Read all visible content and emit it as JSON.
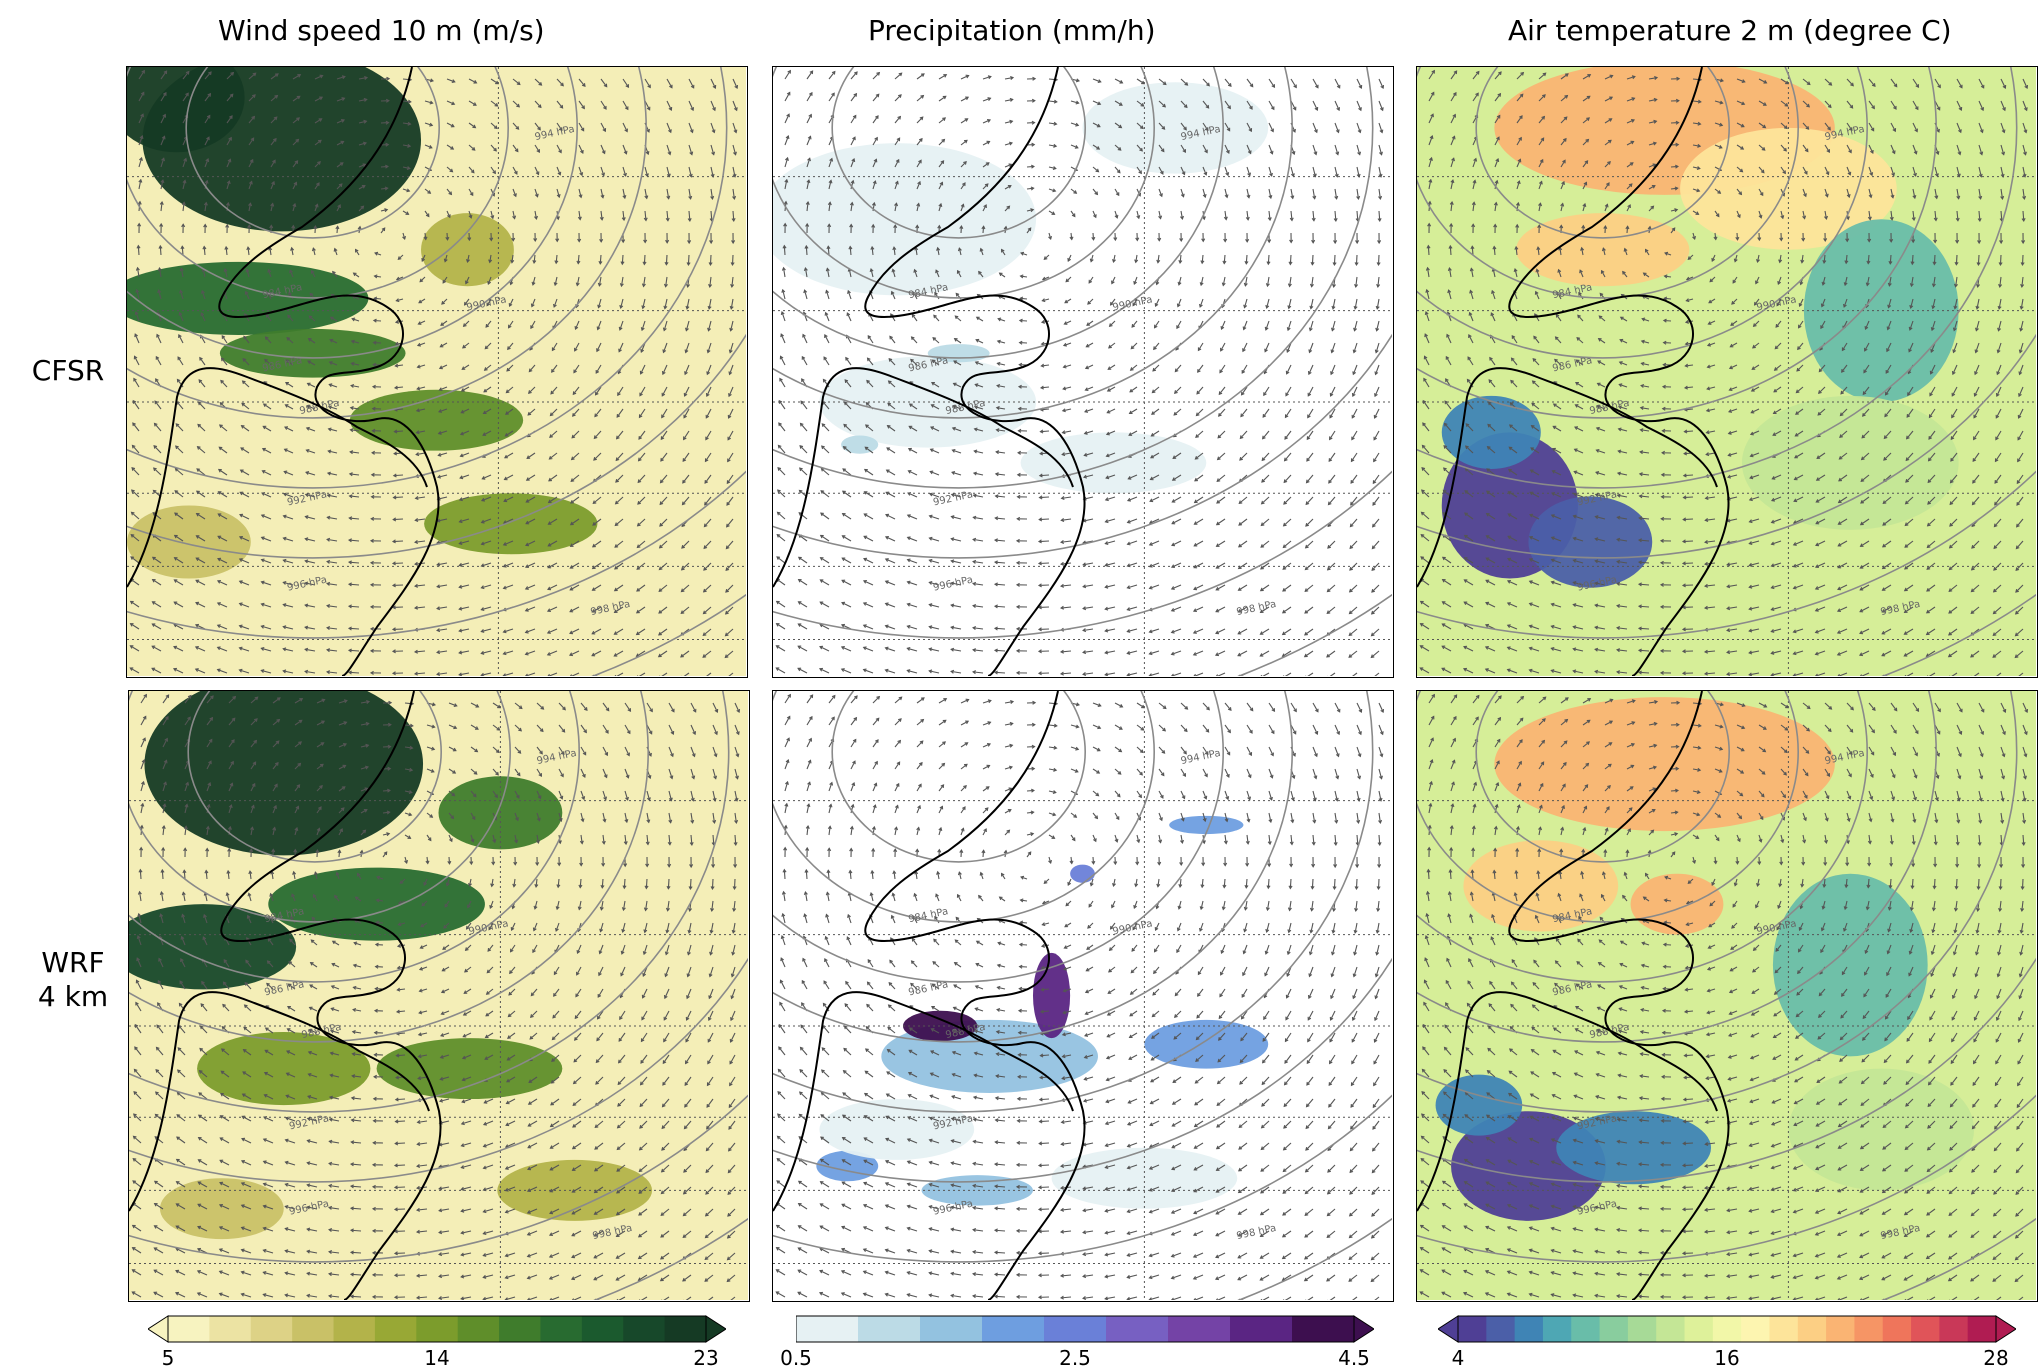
{
  "chart_data": {
    "type": "heatmap",
    "columns": [
      "Wind speed 10 m (m/s)",
      "Precipitation (mm/h)",
      "Air temperature 2 m (degree C)"
    ],
    "rows": [
      "CFSR",
      "WRF\n4 km"
    ],
    "row_labels": [
      "CFSR",
      "WRF",
      "4 km"
    ],
    "overlays": {
      "isobars_hPa": [
        984,
        986,
        988,
        990,
        992,
        994,
        996,
        998
      ],
      "isobar_labels": [
        "984 hPa",
        "986 hPa",
        "988 hPa",
        "990 hPa",
        "992 hPa",
        "994 hPa",
        "996 hPa",
        "998 hPa"
      ],
      "wind_vectors": true,
      "coastline": true,
      "gridlines": "dotted"
    },
    "colorbars": [
      {
        "variable": "wind_speed",
        "min": 5,
        "max": 23,
        "ticks": [
          "5",
          "14",
          "23"
        ],
        "extend": "both",
        "colors": [
          "#f7f3c0",
          "#ece3a3",
          "#ddd286",
          "#c9c167",
          "#b3b34a",
          "#98a835",
          "#7c9c2c",
          "#5f8e2a",
          "#3f7c2c",
          "#286b30",
          "#1b5a2e",
          "#17482a",
          "#153a24"
        ]
      },
      {
        "variable": "precipitation",
        "min": 0.5,
        "max": 4.5,
        "ticks": [
          "0.5",
          "2.5",
          "4.5"
        ],
        "extend": "max",
        "colors": [
          "#e6f1f3",
          "#bcdbe6",
          "#93c2e0",
          "#6e9ee0",
          "#6a80d8",
          "#7760c2",
          "#7443a6",
          "#5a2583",
          "#3d0f4f"
        ]
      },
      {
        "variable": "air_temperature",
        "min": 4,
        "max": 28,
        "ticks": [
          "4",
          "16",
          "28"
        ],
        "extend": "both",
        "colors": [
          "#4f3f95",
          "#4b5fa8",
          "#3f84b5",
          "#4ea7b4",
          "#69bda9",
          "#89cd9e",
          "#a7da97",
          "#c4e696",
          "#def19a",
          "#f2f7a8",
          "#fdf5b0",
          "#fde49a",
          "#fccf84",
          "#fab473",
          "#f69565",
          "#ef755b",
          "#e05459",
          "#c93858",
          "#b01c52"
        ]
      }
    ]
  }
}
